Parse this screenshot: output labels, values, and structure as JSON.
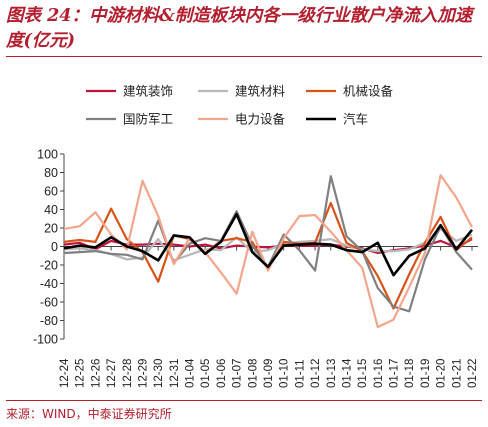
{
  "header": {
    "title": "图表 24：中游材料&制造板块内各一级行业散户净流入加速度(亿元)"
  },
  "footer": {
    "source": "来源：WIND，中泰证券研究所"
  },
  "chart_data": {
    "type": "line",
    "title": "图表 24：中游材料&制造板块内各一级行业散户净流入加速度(亿元)",
    "xlabel": "",
    "ylabel": "",
    "ylim": [
      -100,
      100
    ],
    "yticks": [
      100,
      80,
      60,
      40,
      20,
      0,
      -20,
      -40,
      -60,
      -80,
      -100
    ],
    "grid": false,
    "legend_position": "top",
    "categories": [
      "12-24",
      "12-25",
      "12-26",
      "12-27",
      "12-28",
      "12-29",
      "12-30",
      "12-31",
      "01-04",
      "01-05",
      "01-06",
      "01-07",
      "01-08",
      "01-09",
      "01-10",
      "01-11",
      "01-12",
      "01-13",
      "01-14",
      "01-15",
      "01-16",
      "01-17",
      "01-18",
      "01-19",
      "01-20",
      "01-21",
      "01-22"
    ],
    "series": [
      {
        "name": "建筑装饰",
        "color": "#c0143c",
        "values": [
          2,
          4,
          -3,
          6,
          2,
          2,
          3,
          2,
          0,
          2,
          -2,
          1,
          0,
          -1,
          1,
          1,
          1,
          2,
          0,
          -2,
          -7,
          -4,
          -2,
          1,
          6,
          -1,
          8
        ]
      },
      {
        "name": "建筑材料",
        "color": "#b8b8b8",
        "values": [
          -3,
          -2,
          -4,
          -8,
          -14,
          -12,
          8,
          -15,
          -9,
          -3,
          -4,
          10,
          -6,
          -4,
          3,
          5,
          6,
          8,
          1,
          -3,
          -5,
          -5,
          -3,
          4,
          19,
          6,
          13
        ]
      },
      {
        "name": "机械设备",
        "color": "#d95319",
        "values": [
          5,
          7,
          5,
          41,
          8,
          -6,
          -38,
          12,
          8,
          -7,
          6,
          9,
          5,
          -25,
          5,
          3,
          4,
          47,
          4,
          -5,
          -32,
          -67,
          -30,
          4,
          32,
          -4,
          10
        ]
      },
      {
        "name": "国防军工",
        "color": "#808080",
        "values": [
          -7,
          -6,
          -5,
          -8,
          -9,
          -14,
          28,
          -18,
          3,
          9,
          6,
          38,
          1,
          -22,
          13,
          -4,
          -26,
          76,
          11,
          -5,
          -45,
          -65,
          -70,
          -14,
          22,
          -6,
          -25
        ]
      },
      {
        "name": "电力设备",
        "color": "#f4a58b",
        "values": [
          19,
          22,
          37,
          13,
          -3,
          71,
          33,
          -19,
          9,
          -6,
          -28,
          -51,
          16,
          -26,
          9,
          33,
          34,
          16,
          -4,
          -23,
          -87,
          -79,
          -44,
          -7,
          77,
          53,
          21
        ]
      },
      {
        "name": "汽车",
        "color": "#000000",
        "values": [
          -2,
          1,
          -1,
          10,
          0,
          -5,
          -15,
          12,
          10,
          -8,
          5,
          35,
          -6,
          -22,
          1,
          2,
          3,
          2,
          -4,
          -6,
          4,
          -31,
          -10,
          -2,
          23,
          -3,
          18
        ]
      }
    ]
  }
}
